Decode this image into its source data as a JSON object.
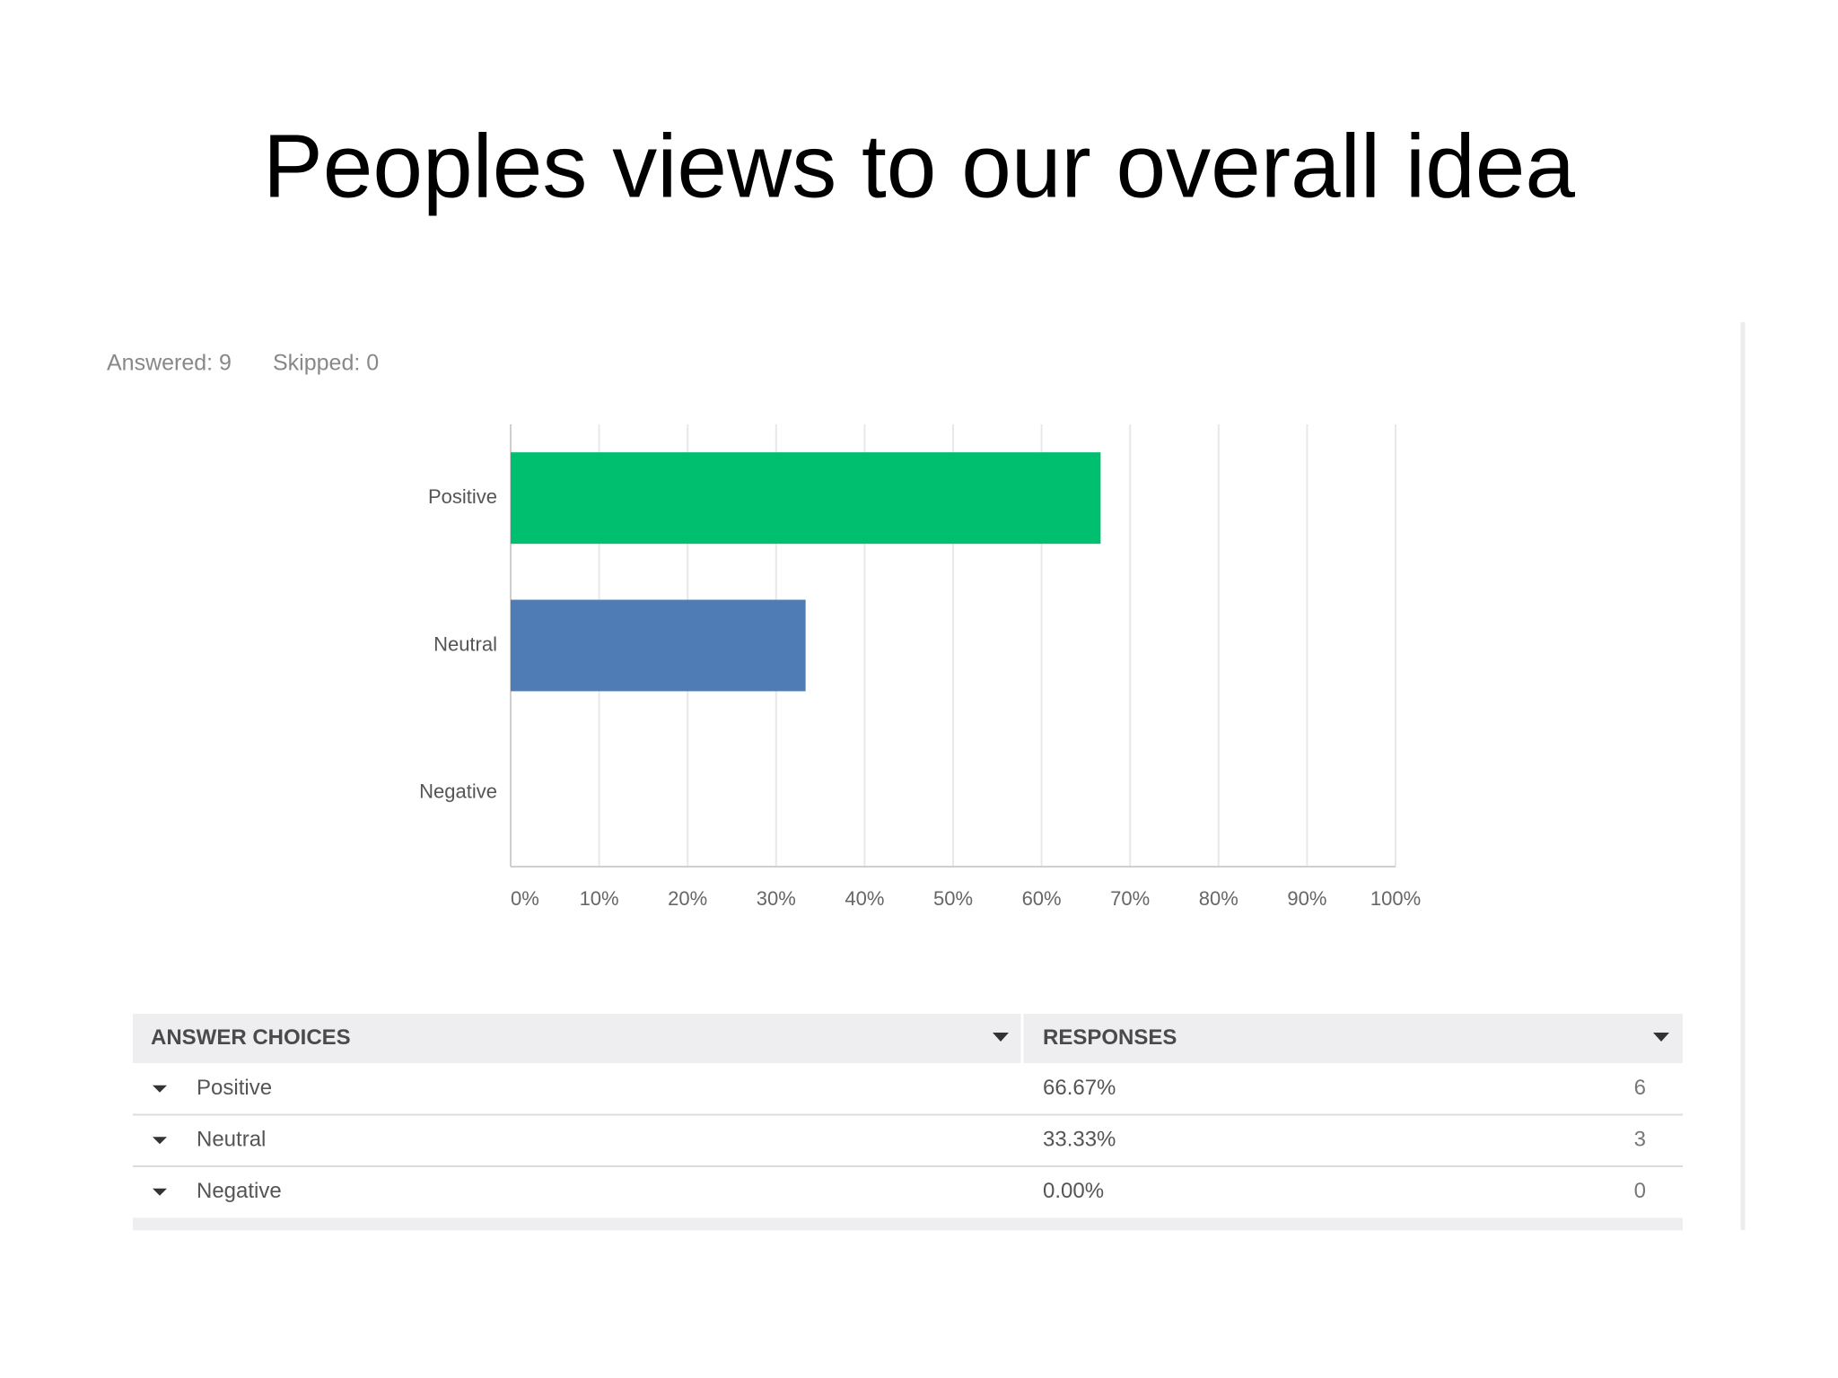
{
  "title": "Peoples views to our overall idea",
  "summary": [
    "Answered: 9",
    "Skipped: 0"
  ],
  "chart_data": {
    "type": "hbar",
    "categories": [
      "Positive",
      "Neutral",
      "Negative"
    ],
    "values": [
      66.67,
      33.33,
      0
    ],
    "colors": [
      "#00bf6f",
      "#507cb6"
    ],
    "xlim": [
      0,
      100
    ],
    "xticks": [
      {
        "value": 0,
        "label": "0%"
      },
      {
        "value": 10,
        "label": "10%"
      },
      {
        "value": 20,
        "label": "20%"
      },
      {
        "value": 30,
        "label": "30%"
      },
      {
        "value": 40,
        "label": "40%"
      },
      {
        "value": 50,
        "label": "50%"
      },
      {
        "value": 60,
        "label": "60%"
      },
      {
        "value": 70,
        "label": "70%"
      },
      {
        "value": 80,
        "label": "80%"
      },
      {
        "value": 90,
        "label": "90%"
      },
      {
        "value": 100,
        "label": "100%"
      }
    ],
    "grid": true
  },
  "table": {
    "header": [
      "ANSWER CHOICES",
      "RESPONSES"
    ],
    "rows": [
      [
        "Positive",
        "66.67%",
        6
      ],
      [
        "Neutral",
        "33.33%",
        3
      ],
      [
        "Negative",
        "0.00%",
        0
      ]
    ]
  }
}
